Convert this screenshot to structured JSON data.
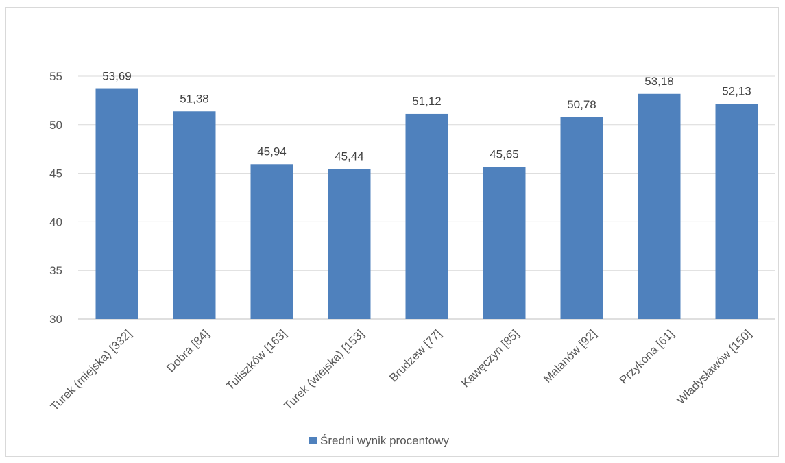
{
  "chart_data": {
    "type": "bar",
    "categories": [
      "Turek (miejska) [332]",
      "Dobra [84]",
      "Tuliszków [163]",
      "Turek (wiejska) [153]",
      "Brudzew [77]",
      "Kawęczyn [85]",
      "Malanów [92]",
      "Przykona [61]",
      "Władysławów [150]"
    ],
    "series": [
      {
        "name": "Średni wynik procentowy",
        "values": [
          53.69,
          51.38,
          45.94,
          45.44,
          51.12,
          45.65,
          50.78,
          53.18,
          52.13
        ],
        "labels": [
          "53,69",
          "51,38",
          "45,94",
          "45,44",
          "51,12",
          "45,65",
          "50,78",
          "53,18",
          "52,13"
        ],
        "color": "#4f81bd"
      }
    ],
    "yticks": [
      "30",
      "35",
      "40",
      "45",
      "50",
      "55"
    ],
    "ylim": [
      30,
      55
    ],
    "grid": true,
    "legend": "bottom",
    "title": "",
    "xlabel": "",
    "ylabel": ""
  }
}
